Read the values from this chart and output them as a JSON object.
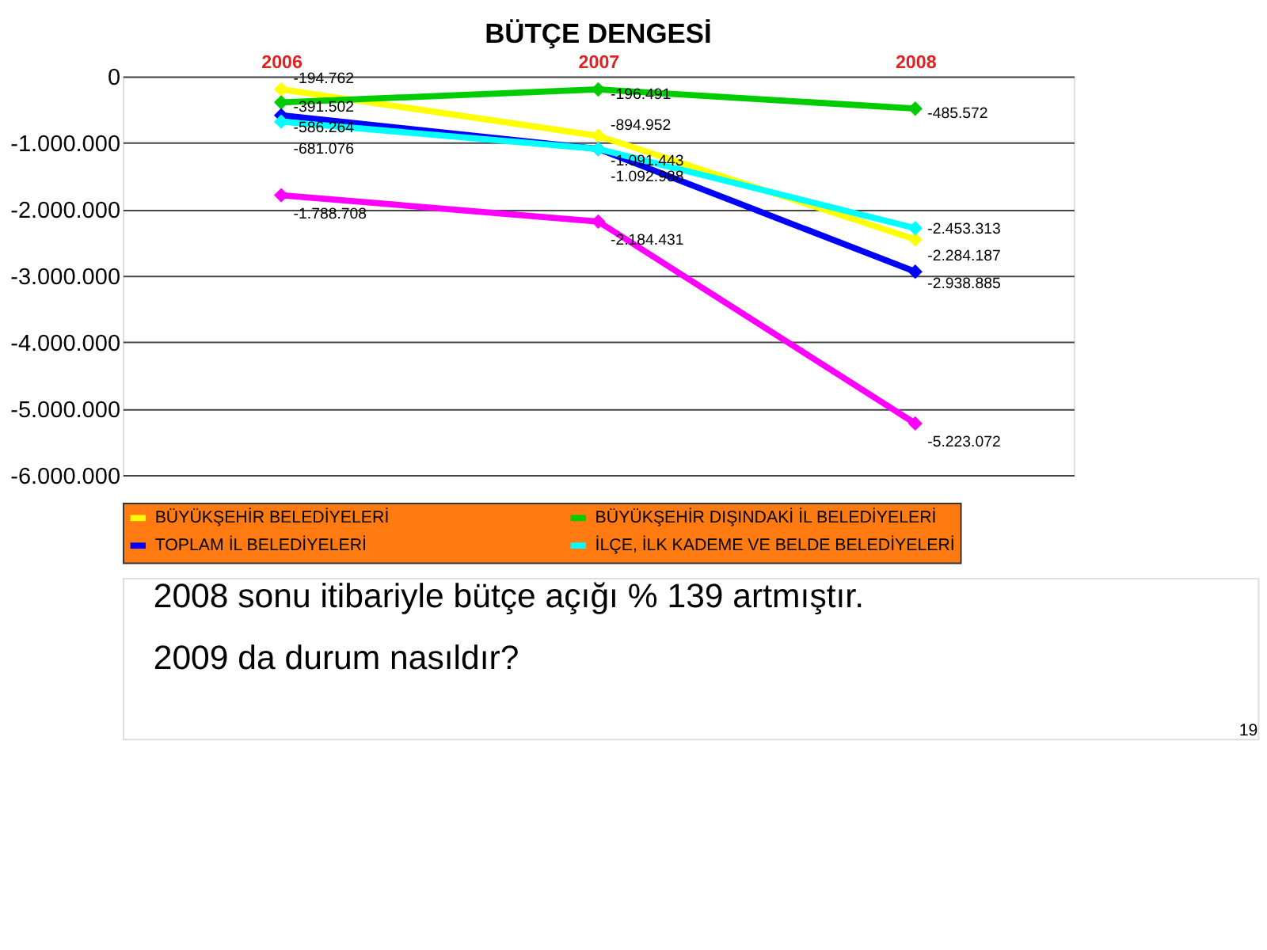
{
  "chart_data": {
    "type": "line",
    "title": "BÜTÇE DENGESİ",
    "categories": [
      "2006",
      "2007",
      "2008"
    ],
    "series": [
      {
        "name": "BÜYÜKŞEHİR BELEDİYELERİ",
        "color": "#ffff00",
        "values": [
          -194762,
          -894952,
          -2453313
        ],
        "value_labels": [
          "-194.762",
          "-894.952",
          "-2.453.313"
        ]
      },
      {
        "name": "BÜYÜKŞEHİR DIŞINDAKİ İL BELEDİYELERİ",
        "color": "#00cc00",
        "values": [
          -391502,
          -196491,
          -485572
        ],
        "value_labels": [
          "-391.502",
          "-196.491",
          "-485.572"
        ]
      },
      {
        "name": "TOPLAM İL BELEDİYELERİ",
        "color": "#0000ff",
        "values": [
          -586264,
          -1091443,
          -2938885
        ],
        "value_labels": [
          "-586.264",
          "-1.091.443",
          "-2.938.885"
        ]
      },
      {
        "name": "İLÇE, İLK KADEME VE BELDE BELEDİYELERİ",
        "color": "#00ffff",
        "values": [
          -681076,
          -1092988,
          -2284187
        ],
        "value_labels": [
          "-681.076",
          "-1.092.988",
          "-2.284.187"
        ]
      },
      {
        "color": "#ff00ff",
        "values": [
          -1788708,
          -2184431,
          -5223072
        ],
        "value_labels": [
          "-1.788.708",
          "-2.184.431",
          "-5.223.072"
        ]
      }
    ],
    "ylim": [
      -6000000,
      0
    ],
    "yticks": [
      {
        "value": 0,
        "label": "0"
      },
      {
        "value": -1000000,
        "label": "-1.000.000"
      },
      {
        "value": -2000000,
        "label": "-2.000.000"
      },
      {
        "value": -3000000,
        "label": "-3.000.000"
      },
      {
        "value": -4000000,
        "label": "-4.000.000"
      },
      {
        "value": -5000000,
        "label": "-5.000.000"
      },
      {
        "value": -6000000,
        "label": "-6.000.000"
      }
    ],
    "grid": "y",
    "legend": "bottom",
    "marker": "diamond",
    "line_style": "solid",
    "annotations": [
      "2008 sonu itibariyle bütçe açığı % 139 artmıştır.",
      "2009 da durum nasıldır?",
      "19"
    ]
  }
}
